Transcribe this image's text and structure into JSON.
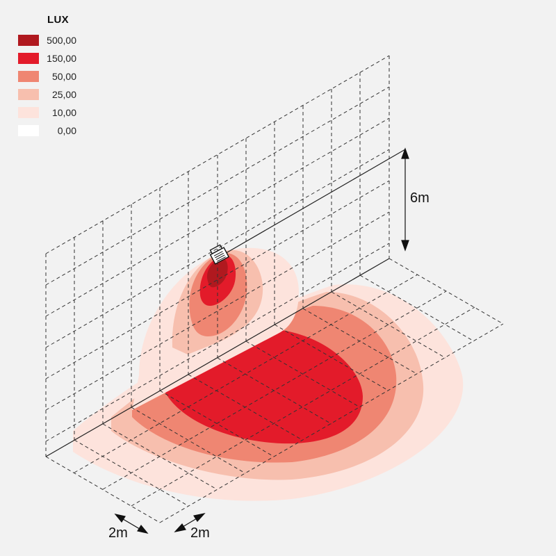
{
  "legend": {
    "title": "LUX",
    "items": [
      {
        "label": "500,00",
        "color": "#b0191f"
      },
      {
        "label": "150,00",
        "color": "#e31b2a"
      },
      {
        "label": "50,00",
        "color": "#ef8672"
      },
      {
        "label": "25,00",
        "color": "#f7bfae"
      },
      {
        "label": "10,00",
        "color": "#fde3dc"
      },
      {
        "label": "0,00",
        "color": "#ffffff"
      }
    ]
  },
  "dimensions": {
    "height": "6m",
    "grid_depth": "2m",
    "grid_width": "2m"
  },
  "icons": {
    "fixture": "floodlight-icon"
  }
}
